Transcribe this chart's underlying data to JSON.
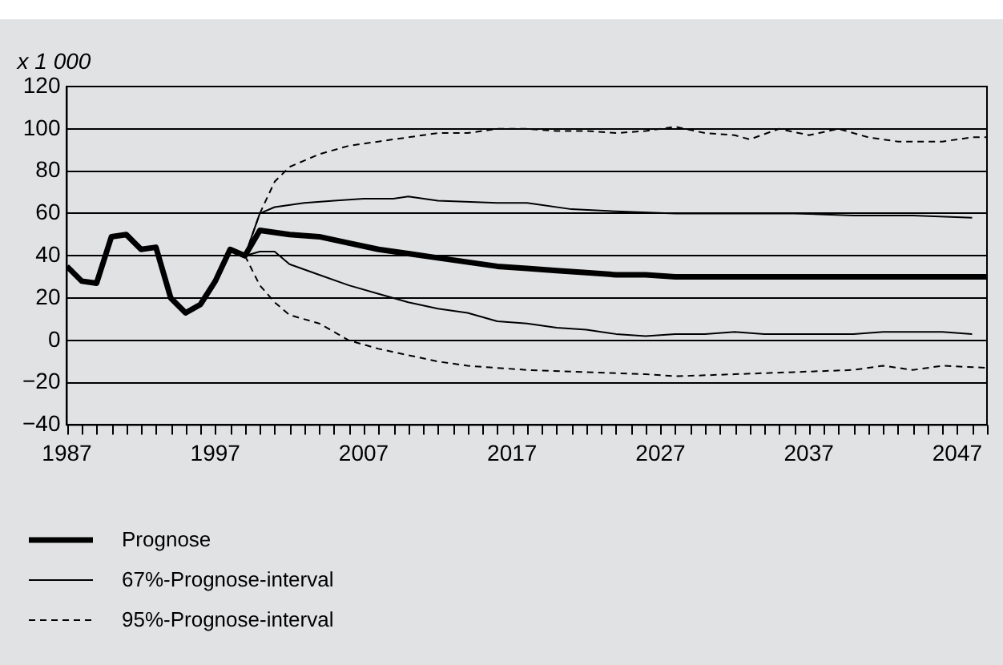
{
  "chart_data": {
    "type": "line",
    "ylabel": "x 1 000",
    "xlim": [
      1987,
      2049
    ],
    "xticks": [
      1987,
      {
        "value": 1988,
        "label": null
      },
      {
        "value": 1989,
        "label": null
      },
      {
        "value": 1990,
        "label": null
      },
      {
        "value": 1991,
        "label": null
      },
      {
        "value": 1992,
        "label": null
      },
      {
        "value": 1993,
        "label": null
      },
      {
        "value": 1994,
        "label": null
      },
      {
        "value": 1995,
        "label": null
      },
      {
        "value": 1996,
        "label": null
      },
      1997,
      {
        "value": 1998,
        "label": null
      },
      {
        "value": 1999,
        "label": null
      },
      {
        "value": 2000,
        "label": null
      },
      {
        "value": 2001,
        "label": null
      },
      {
        "value": 2002,
        "label": null
      },
      {
        "value": 2003,
        "label": null
      },
      {
        "value": 2004,
        "label": null
      },
      {
        "value": 2005,
        "label": null
      },
      {
        "value": 2006,
        "label": null
      },
      2007,
      {
        "value": 2008,
        "label": null
      },
      {
        "value": 2009,
        "label": null
      },
      {
        "value": 2010,
        "label": null
      },
      {
        "value": 2011,
        "label": null
      },
      {
        "value": 2012,
        "label": null
      },
      {
        "value": 2013,
        "label": null
      },
      {
        "value": 2014,
        "label": null
      },
      {
        "value": 2015,
        "label": null
      },
      {
        "value": 2016,
        "label": null
      },
      2017,
      {
        "value": 2018,
        "label": null
      },
      {
        "value": 2019,
        "label": null
      },
      {
        "value": 2020,
        "label": null
      },
      {
        "value": 2021,
        "label": null
      },
      {
        "value": 2022,
        "label": null
      },
      {
        "value": 2023,
        "label": null
      },
      {
        "value": 2024,
        "label": null
      },
      {
        "value": 2025,
        "label": null
      },
      {
        "value": 2026,
        "label": null
      },
      2027,
      {
        "value": 2028,
        "label": null
      },
      {
        "value": 2029,
        "label": null
      },
      {
        "value": 2030,
        "label": null
      },
      {
        "value": 2031,
        "label": null
      },
      {
        "value": 2032,
        "label": null
      },
      {
        "value": 2033,
        "label": null
      },
      {
        "value": 2034,
        "label": null
      },
      {
        "value": 2035,
        "label": null
      },
      {
        "value": 2036,
        "label": null
      },
      2037,
      {
        "value": 2038,
        "label": null
      },
      {
        "value": 2039,
        "label": null
      },
      {
        "value": 2040,
        "label": null
      },
      {
        "value": 2041,
        "label": null
      },
      {
        "value": 2042,
        "label": null
      },
      {
        "value": 2043,
        "label": null
      },
      {
        "value": 2044,
        "label": null
      },
      {
        "value": 2045,
        "label": null
      },
      {
        "value": 2046,
        "label": null
      },
      2047,
      {
        "value": 2048,
        "label": null
      },
      {
        "value": 2049,
        "label": null
      }
    ],
    "ylim": [
      -40,
      120
    ],
    "yticks": [
      {
        "value": -40,
        "label": "−40"
      },
      {
        "value": -20,
        "label": "−20"
      },
      0,
      20,
      40,
      60,
      80,
      100,
      120
    ],
    "grid": "y",
    "legend": "bottom left",
    "marker": "none",
    "series": [
      {
        "name": "Prognose",
        "color": "#000000",
        "line_style": "solid",
        "x": [
          1987,
          1988,
          1989,
          1990,
          1991,
          1992,
          1993,
          1994,
          1995,
          1996,
          1997,
          1998,
          1999,
          2000,
          2002,
          2004,
          2006,
          2008,
          2010,
          2012,
          2014,
          2016,
          2018,
          2020,
          2022,
          2024,
          2026,
          2028,
          2030,
          2035,
          2040,
          2045,
          2049
        ],
        "values": [
          35,
          28,
          27,
          49,
          50,
          43,
          44,
          20,
          13,
          17,
          28,
          43,
          40,
          52,
          50,
          49,
          46,
          43,
          41,
          39,
          37,
          35,
          34,
          33,
          32,
          31,
          31,
          30,
          30,
          30,
          30,
          30,
          30
        ]
      },
      {
        "name": "67%-Prognose-interval",
        "color": "#000000",
        "line_style": "solid",
        "x": [
          1999,
          2000,
          2001,
          2003,
          2005,
          2007,
          2009,
          2010,
          2012,
          2016,
          2018,
          2021,
          2024,
          2028,
          2032,
          2036,
          2040,
          2044,
          2048,
          null,
          1999,
          2000,
          2001,
          2002,
          2004,
          2006,
          2008,
          2010,
          2012,
          2014,
          2016,
          2018,
          2020,
          2022,
          2024,
          2026,
          2028,
          2030,
          2032,
          2034,
          2036,
          2038,
          2040,
          2042,
          2044,
          2046,
          2048
        ],
        "values": [
          40,
          60,
          63,
          65,
          66,
          67,
          67,
          68,
          66,
          65,
          65,
          62,
          61,
          60,
          60,
          60,
          59,
          59,
          58,
          null,
          40,
          42,
          42,
          36,
          31,
          26,
          22,
          18,
          15,
          13,
          9,
          8,
          6,
          5,
          3,
          2,
          3,
          3,
          4,
          3,
          3,
          3,
          3,
          4,
          4,
          4,
          3
        ]
      },
      {
        "name": "95%-Prognose-interval",
        "color": "#000000",
        "line_style": "dashed",
        "x": [
          1999,
          2000,
          2001,
          2002,
          2004,
          2006,
          2008,
          2010,
          2012,
          2014,
          2016,
          2018,
          2020,
          2022,
          2024,
          2026,
          2028,
          2030,
          2032,
          2033,
          2035,
          2037,
          2039,
          2041,
          2043,
          2046,
          2048,
          2049,
          null,
          1999,
          2000,
          2001,
          2002,
          2004,
          2006,
          2008,
          2010,
          2012,
          2014,
          2016,
          2018,
          2022,
          2026,
          2028,
          2032,
          2036,
          2040,
          2042,
          2044,
          2046,
          2049
        ],
        "values": [
          40,
          60,
          75,
          82,
          88,
          92,
          94,
          96,
          98,
          98,
          100,
          100,
          99,
          99,
          98,
          99,
          101,
          98,
          97,
          95,
          100,
          97,
          100,
          96,
          94,
          94,
          96,
          96,
          null,
          40,
          26,
          18,
          12,
          8,
          0,
          -4,
          -7,
          -10,
          -12,
          -13,
          -14,
          -15,
          -16,
          -17,
          -16,
          -15,
          -14,
          -12,
          -14,
          -12,
          -13
        ]
      }
    ]
  }
}
